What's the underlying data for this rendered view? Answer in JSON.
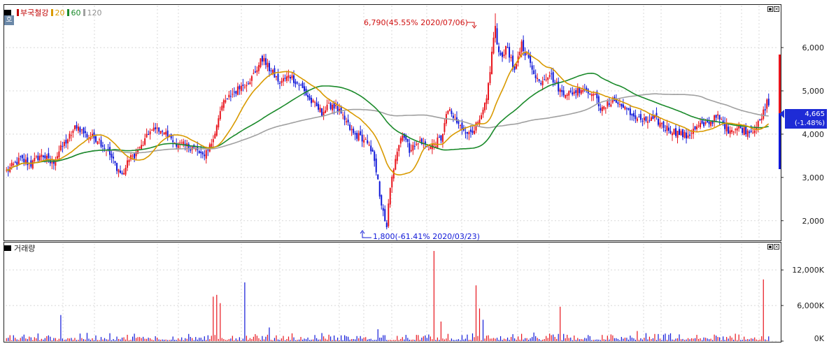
{
  "legend": {
    "stock_name": "부국철강",
    "ma20": "20",
    "ma60": "60",
    "ma120": "120",
    "volume_label": "거래량",
    "mode_button": "호"
  },
  "colors": {
    "up": "#e8141c",
    "down": "#1018d8",
    "ma20": "#d99a00",
    "ma60": "#1a8a2a",
    "ma120": "#a0a0a0",
    "grid": "#d8d8d8",
    "price_box": "#1e2bd6"
  },
  "annotations": {
    "high": "6,790(45.55% 2020/07/06)",
    "low": "1,800(-61.41% 2020/03/23)"
  },
  "current_price": {
    "price": "4,665",
    "change": "(-1.48%)"
  },
  "chart_data": [
    {
      "type": "candlestick",
      "title": "부국철강",
      "y_ticks": [
        "2,000",
        "3,000",
        "4,000",
        "5,000",
        "6,000"
      ],
      "y_tick_values": [
        2000,
        3000,
        4000,
        5000,
        6000
      ],
      "ylim": [
        1560,
        6970
      ],
      "high": 6790,
      "low": 1800,
      "last": 4665,
      "series_close_anchors": [
        [
          0,
          3150
        ],
        [
          8,
          3420
        ],
        [
          14,
          3300
        ],
        [
          20,
          3550
        ],
        [
          26,
          3300
        ],
        [
          30,
          3600
        ],
        [
          36,
          3950
        ],
        [
          40,
          4200
        ],
        [
          46,
          3950
        ],
        [
          52,
          3900
        ],
        [
          58,
          3600
        ],
        [
          62,
          3300
        ],
        [
          66,
          3050
        ],
        [
          70,
          3400
        ],
        [
          76,
          3650
        ],
        [
          82,
          4050
        ],
        [
          88,
          4150
        ],
        [
          94,
          3850
        ],
        [
          100,
          3750
        ],
        [
          106,
          3700
        ],
        [
          112,
          3500
        ],
        [
          118,
          3850
        ],
        [
          122,
          4600
        ],
        [
          128,
          4900
        ],
        [
          134,
          5100
        ],
        [
          140,
          5300
        ],
        [
          146,
          5750
        ],
        [
          150,
          5500
        ],
        [
          156,
          5200
        ],
        [
          162,
          5350
        ],
        [
          168,
          5100
        ],
        [
          174,
          4750
        ],
        [
          180,
          4500
        ],
        [
          186,
          4700
        ],
        [
          192,
          4400
        ],
        [
          198,
          4000
        ],
        [
          204,
          3900
        ],
        [
          210,
          3450
        ],
        [
          213,
          2600
        ],
        [
          216,
          1950
        ],
        [
          219,
          2700
        ],
        [
          222,
          3500
        ],
        [
          226,
          4050
        ],
        [
          230,
          3650
        ],
        [
          236,
          3800
        ],
        [
          242,
          3700
        ],
        [
          248,
          3900
        ],
        [
          252,
          4550
        ],
        [
          258,
          4200
        ],
        [
          264,
          4050
        ],
        [
          270,
          4250
        ],
        [
          274,
          4800
        ],
        [
          278,
          6200
        ],
        [
          282,
          5800
        ],
        [
          286,
          6000
        ],
        [
          290,
          5400
        ],
        [
          294,
          6100
        ],
        [
          298,
          5700
        ],
        [
          304,
          5200
        ],
        [
          310,
          5400
        ],
        [
          316,
          5000
        ],
        [
          322,
          4950
        ],
        [
          328,
          5050
        ],
        [
          334,
          5000
        ],
        [
          340,
          4550
        ],
        [
          346,
          4800
        ],
        [
          352,
          4600
        ],
        [
          358,
          4400
        ],
        [
          364,
          4300
        ],
        [
          370,
          4350
        ],
        [
          376,
          4150
        ],
        [
          382,
          4050
        ],
        [
          388,
          3950
        ],
        [
          394,
          4150
        ],
        [
          400,
          4250
        ],
        [
          406,
          4400
        ],
        [
          412,
          4100
        ],
        [
          418,
          4150
        ],
        [
          424,
          4050
        ],
        [
          430,
          4250
        ],
        [
          434,
          4750
        ]
      ],
      "n_bars": 436
    },
    {
      "type": "bar",
      "title": "거래량",
      "y_ticks": [
        "0K",
        "6,000K",
        "12,000K"
      ],
      "y_tick_values": [
        0,
        6000,
        12000
      ],
      "ylim": [
        0,
        16500
      ],
      "spikes": [
        [
          31,
          4400,
          "down"
        ],
        [
          118,
          7500,
          "up"
        ],
        [
          120,
          7800,
          "up"
        ],
        [
          122,
          6400,
          "up"
        ],
        [
          136,
          9900,
          "down"
        ],
        [
          150,
          2300,
          "down"
        ],
        [
          212,
          2000,
          "down"
        ],
        [
          244,
          15200,
          "up"
        ],
        [
          248,
          3300,
          "up"
        ],
        [
          268,
          9400,
          "up"
        ],
        [
          270,
          5500,
          "up"
        ],
        [
          272,
          3600,
          "down"
        ],
        [
          316,
          5800,
          "up"
        ],
        [
          360,
          1700,
          "up"
        ],
        [
          432,
          10400,
          "up"
        ]
      ]
    }
  ]
}
